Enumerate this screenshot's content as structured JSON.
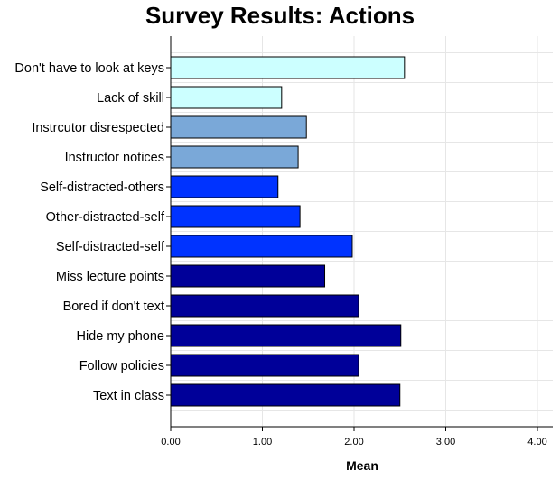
{
  "chart_data": {
    "type": "bar",
    "orientation": "horizontal",
    "title": "Survey Results: Actions",
    "xlabel": "Mean",
    "ylabel": "",
    "xlim": [
      0,
      4.2
    ],
    "xticks": [
      0,
      1,
      2,
      3,
      4
    ],
    "xtick_labels": [
      "0.00",
      "1.00",
      "2.00",
      "3.00",
      "4.00"
    ],
    "grid": true,
    "legend": "none",
    "categories": [
      "Don't have to look at keys",
      "Lack of skill",
      "Instrcutor disrespected",
      "Instructor notices",
      "Self-distracted-others",
      "Other-distracted-self",
      "Self-distracted-self",
      "Miss lecture points",
      "Bored if don't text",
      "Hide my phone",
      "Follow policies",
      "Text in class"
    ],
    "values": [
      2.55,
      1.21,
      1.48,
      1.39,
      1.17,
      1.41,
      1.98,
      1.68,
      2.05,
      2.51,
      2.05,
      2.5
    ],
    "colors": [
      "#ccffff",
      "#ccffff",
      "#7aa8d8",
      "#7aa8d8",
      "#0033ff",
      "#0033ff",
      "#0033ff",
      "#000099",
      "#000099",
      "#000099",
      "#000099",
      "#000099"
    ]
  }
}
